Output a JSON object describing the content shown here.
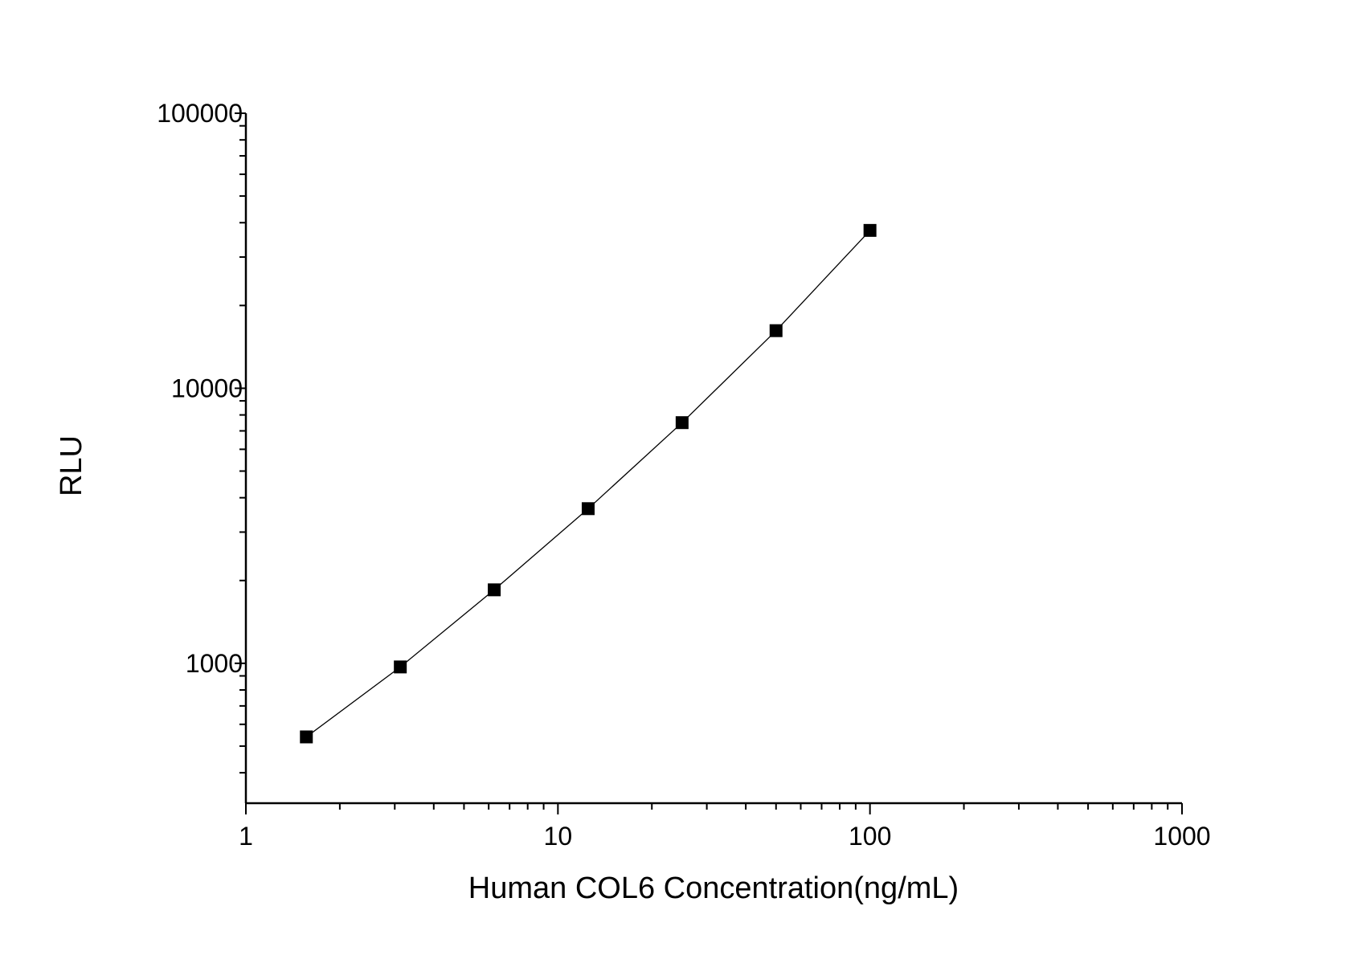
{
  "chart_data": {
    "type": "scatter",
    "title": "",
    "xlabel": "Human COL6 Concentration(ng/mL)",
    "ylabel": "RLU",
    "x_scale": "log",
    "y_scale": "log",
    "xlim": [
      1,
      1000
    ],
    "ylim": [
      310,
      100000
    ],
    "x_ticks": [
      1,
      10,
      100,
      1000
    ],
    "x_tick_labels": [
      "1",
      "10",
      "100",
      "1000"
    ],
    "y_ticks": [
      1000,
      10000,
      100000
    ],
    "y_tick_labels": [
      "1000",
      "10000",
      "100000"
    ],
    "grid": false,
    "legend": "none",
    "series": [
      {
        "x": [
          1.5625,
          3.125,
          6.25,
          12.5,
          25,
          50,
          100
        ],
        "y": [
          540,
          970,
          1850,
          3650,
          7500,
          16200,
          37500
        ],
        "marker": "square",
        "color": "#000000",
        "fit_line": true
      }
    ]
  }
}
